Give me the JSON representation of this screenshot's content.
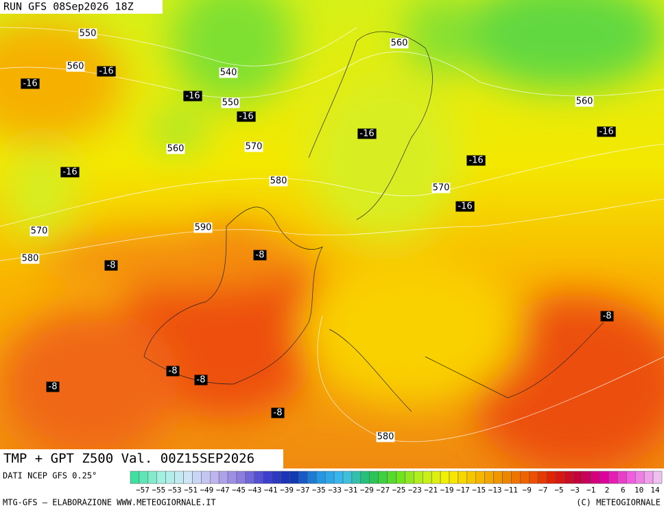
{
  "header": {
    "run": "RUN GFS 08Sep2026 18Z"
  },
  "map": {
    "height_labels": [
      "550",
      "560",
      "540",
      "550",
      "560",
      "570",
      "560",
      "560",
      "580",
      "570",
      "570",
      "590",
      "580",
      "580"
    ],
    "temperature_labels": [
      "-16",
      "-16",
      "-16",
      "-16",
      "-16",
      "-16",
      "-16",
      "-16",
      "-16",
      "-8",
      "-8",
      "-8",
      "-8",
      "-8",
      "-8",
      "-8"
    ]
  },
  "footer": {
    "title": "TMP + GPT Z500 Val. 00Z15SEP2026",
    "source": "DATI NCEP GFS 0.25°",
    "scale_labels": [
      "−57",
      "−55",
      "−53",
      "−51",
      "−49",
      "−47",
      "−45",
      "−43",
      "−41",
      "−39",
      "−37",
      "−35",
      "−33",
      "−31",
      "−29",
      "−27",
      "−25",
      "−23",
      "−21",
      "−19",
      "−17",
      "−15",
      "−13",
      "−11",
      "−9",
      "−7",
      "−5",
      "−3",
      "−1",
      "2",
      "6",
      "10",
      "14"
    ],
    "credit_left": "MTG-GFS — ELABORAZIONE WWW.METEOGIORNALE.IT",
    "credit_right": "(C) METEOGIORNALE"
  }
}
